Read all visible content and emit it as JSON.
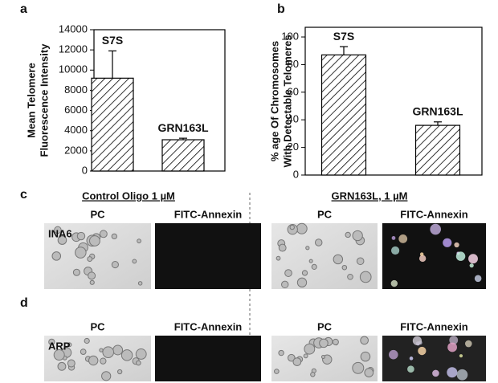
{
  "chart_data": [
    {
      "type": "bar",
      "panel": "a",
      "ylabel": [
        "Mean Telomere",
        "Fluorescence Intensity"
      ],
      "categories": [
        "S7S",
        "GRN163L"
      ],
      "values": [
        9200,
        3100
      ],
      "errors": [
        2700,
        150
      ],
      "color": "#000000",
      "ylim": [
        0,
        14000
      ],
      "yticks": [
        0,
        2000,
        4000,
        6000,
        8000,
        10000,
        12000,
        14000
      ]
    },
    {
      "type": "bar",
      "panel": "b",
      "ylabel": [
        "% age Of Chromosomes",
        "With Detectable Telomeres"
      ],
      "categories": [
        "S7S",
        "GRN163L"
      ],
      "values": [
        87,
        36
      ],
      "errors": [
        6,
        2.5
      ],
      "color": "#000000",
      "ylim": [
        0,
        107
      ],
      "yticks": [
        0,
        20,
        40,
        60,
        80,
        100
      ]
    }
  ],
  "panels": [
    {
      "letter": "c",
      "row_label": "INA6",
      "groups": [
        {
          "title": "Control Oligo 1 µM",
          "columns": [
            "PC",
            "FITC-Annexin"
          ]
        },
        {
          "title": "GRN163L, 1 µM",
          "columns": [
            "PC",
            "FITC-Annexin"
          ]
        }
      ]
    },
    {
      "letter": "d",
      "row_label": "ARP",
      "groups": [
        {
          "columns": [
            "PC",
            "FITC-Annexin"
          ]
        },
        {
          "columns": [
            "PC",
            "FITC-Annexin"
          ]
        }
      ]
    }
  ]
}
